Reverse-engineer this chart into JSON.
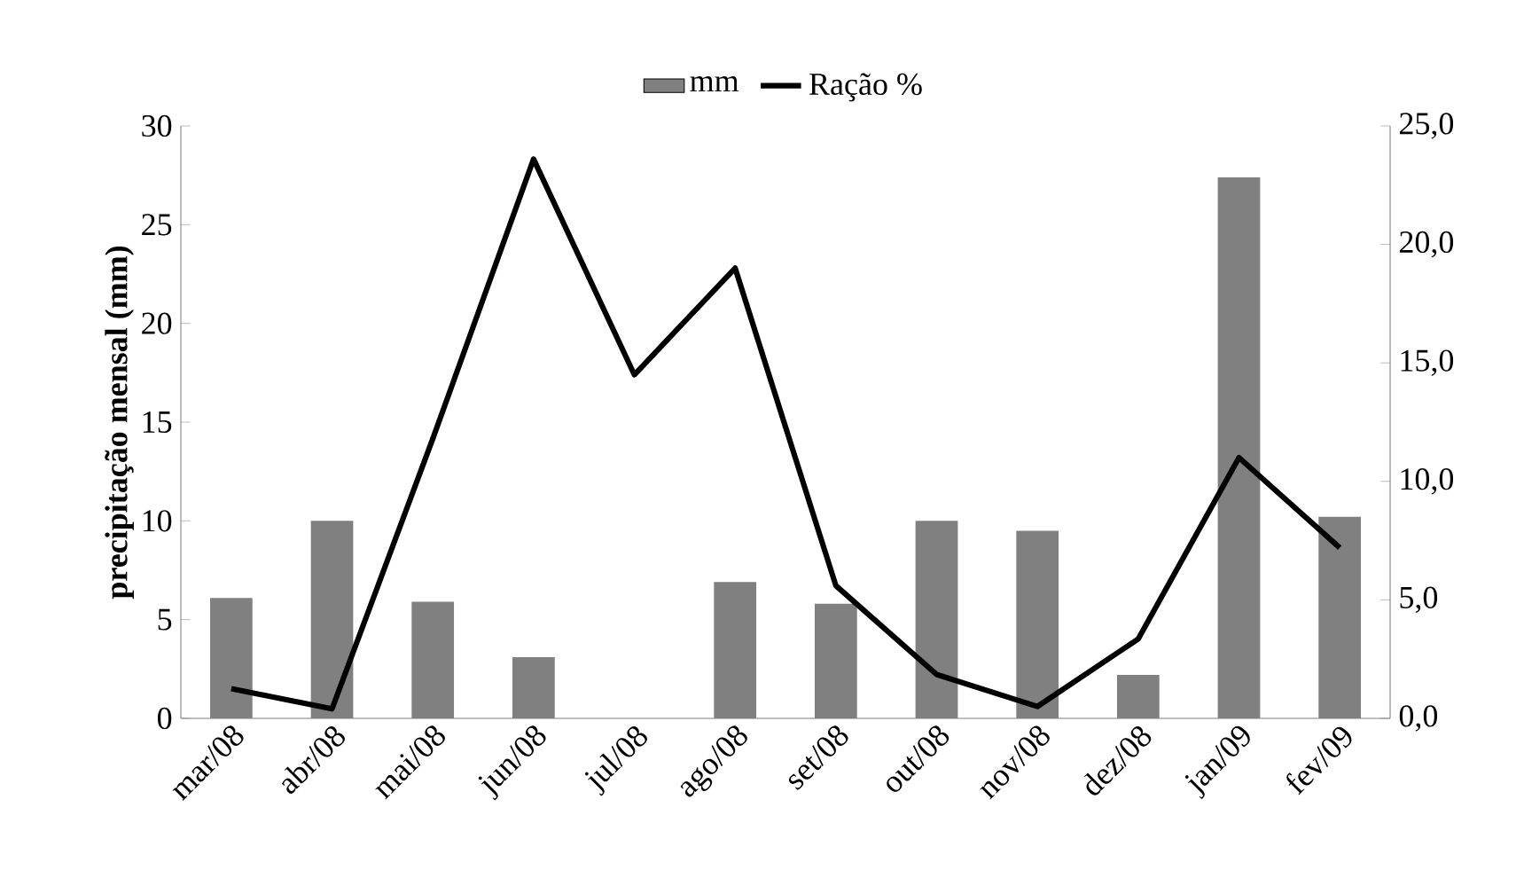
{
  "chart_data": {
    "type": "bar",
    "categories": [
      "mar/08",
      "abr/08",
      "mai/08",
      "jun/08",
      "jul/08",
      "ago/08",
      "set/08",
      "out/08",
      "nov/08",
      "dez/08",
      "jan/09",
      "fev/09"
    ],
    "series": [
      {
        "name": "mm",
        "color": "#808080",
        "values": [
          6.1,
          10.0,
          5.9,
          3.1,
          0,
          6.9,
          5.8,
          10.0,
          9.5,
          2.2,
          27.4,
          10.2
        ]
      },
      {
        "name": "Ração %",
        "type": "line",
        "axis": "y2",
        "color": "#000000",
        "values": [
          1.25,
          0.4,
          11.8,
          23.6,
          14.5,
          19.0,
          5.6,
          1.85,
          0.5,
          3.35,
          11.0,
          7.2
        ]
      }
    ],
    "ylabel": "precipitação mensal  (mm)",
    "ylim": [
      0,
      30
    ],
    "yticks": [
      0,
      5,
      10,
      15,
      20,
      25,
      30
    ],
    "y2lim": [
      0,
      25
    ],
    "y2ticks": [
      {
        "value": 0,
        "label": "0,0"
      },
      {
        "value": 5,
        "label": "5,0"
      },
      {
        "value": 10,
        "label": "10,0"
      },
      {
        "value": 15,
        "label": "15,0"
      },
      {
        "value": 20,
        "label": "20,0"
      },
      {
        "value": 25,
        "label": "25,0"
      }
    ],
    "legend": "top",
    "grid": false,
    "marker": "none",
    "line_style": "solid"
  }
}
